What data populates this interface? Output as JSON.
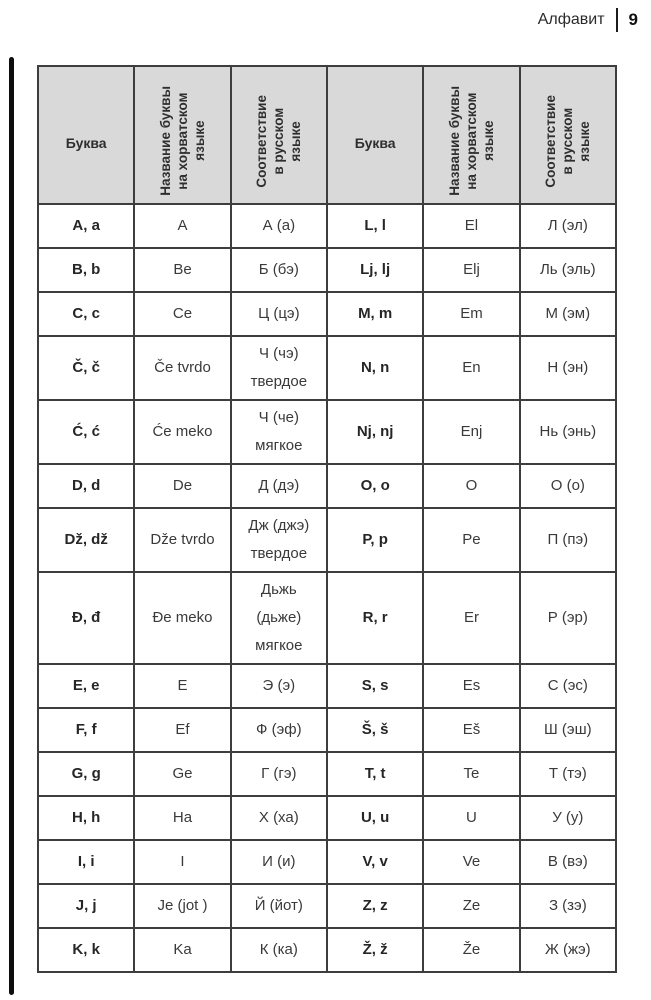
{
  "page_header": {
    "title": "Алфавит",
    "page_number": "9"
  },
  "table": {
    "columns": {
      "letter": "Буква",
      "croatian_name": "Название буквы\nна хорватском\nязыке",
      "russian_match": "Соответствие\nв русском\nязыке"
    },
    "rows": [
      {
        "left": {
          "letter": "A, a",
          "name": "A",
          "russian": "А (а)"
        },
        "right": {
          "letter": "L, l",
          "name": "El",
          "russian": "Л (эл)"
        }
      },
      {
        "left": {
          "letter": "B, b",
          "name": "Be",
          "russian": "Б (бэ)"
        },
        "right": {
          "letter": "Lj, lj",
          "name": "Elj",
          "russian": "Ль (эль)"
        }
      },
      {
        "left": {
          "letter": "C, c",
          "name": "Ce",
          "russian": "Ц (цэ)"
        },
        "right": {
          "letter": "M, m",
          "name": "Em",
          "russian": "М (эм)"
        }
      },
      {
        "left": {
          "letter": "Č, č",
          "name": "Če tvrdo",
          "russian": "Ч (чэ)\nтвердое"
        },
        "right": {
          "letter": "N, n",
          "name": "En",
          "russian": "Н (эн)"
        }
      },
      {
        "left": {
          "letter": "Ć, ć",
          "name": "Će meko",
          "russian": "Ч (че)\nмягкое"
        },
        "right": {
          "letter": "Nj, nj",
          "name": "Enj",
          "russian": "Нь (энь)"
        }
      },
      {
        "left": {
          "letter": "D, d",
          "name": "De",
          "russian": "Д (дэ)"
        },
        "right": {
          "letter": "O, o",
          "name": "O",
          "russian": "О (о)"
        }
      },
      {
        "left": {
          "letter": "Dž, dž",
          "name": "Dže tvrdo",
          "russian": "Дж (джэ)\nтвердое"
        },
        "right": {
          "letter": "P, p",
          "name": "Pe",
          "russian": "П (пэ)"
        }
      },
      {
        "left": {
          "letter": "Đ, đ",
          "name": "Đe meko",
          "russian": "Дьжь\n(дьже)\nмягкое"
        },
        "right": {
          "letter": "R, r",
          "name": "Er",
          "russian": "Р (эр)"
        }
      },
      {
        "left": {
          "letter": "E, e",
          "name": "E",
          "russian": "Э (э)"
        },
        "right": {
          "letter": "S, s",
          "name": "Es",
          "russian": "С (эс)"
        }
      },
      {
        "left": {
          "letter": "F, f",
          "name": "Ef",
          "russian": "Ф (эф)"
        },
        "right": {
          "letter": "Š, š",
          "name": "Eš",
          "russian": "Ш (эш)"
        }
      },
      {
        "left": {
          "letter": "G, g",
          "name": "Ge",
          "russian": "Г (гэ)"
        },
        "right": {
          "letter": "T, t",
          "name": "Te",
          "russian": "Т (тэ)"
        }
      },
      {
        "left": {
          "letter": "H, h",
          "name": "Ha",
          "russian": "Х (ха)"
        },
        "right": {
          "letter": "U, u",
          "name": "U",
          "russian": "У (у)"
        }
      },
      {
        "left": {
          "letter": "I, i",
          "name": "I",
          "russian": "И (и)"
        },
        "right": {
          "letter": "V, v",
          "name": "Ve",
          "russian": "В (вэ)"
        }
      },
      {
        "left": {
          "letter": "J, j",
          "name": "Je (jot )",
          "russian": "Й (йот)"
        },
        "right": {
          "letter": "Z, z",
          "name": "Ze",
          "russian": "З (зэ)"
        }
      },
      {
        "left": {
          "letter": "K, k",
          "name": "Ka",
          "russian": "К (ка)"
        },
        "right": {
          "letter": "Ž, ž",
          "name": "Že",
          "russian": "Ж (жэ)"
        }
      }
    ]
  },
  "colors": {
    "header_bg": "#d9d9d9",
    "border": "#3d3d3d",
    "text": "#333333",
    "side_bar": "#0d0d0d"
  }
}
